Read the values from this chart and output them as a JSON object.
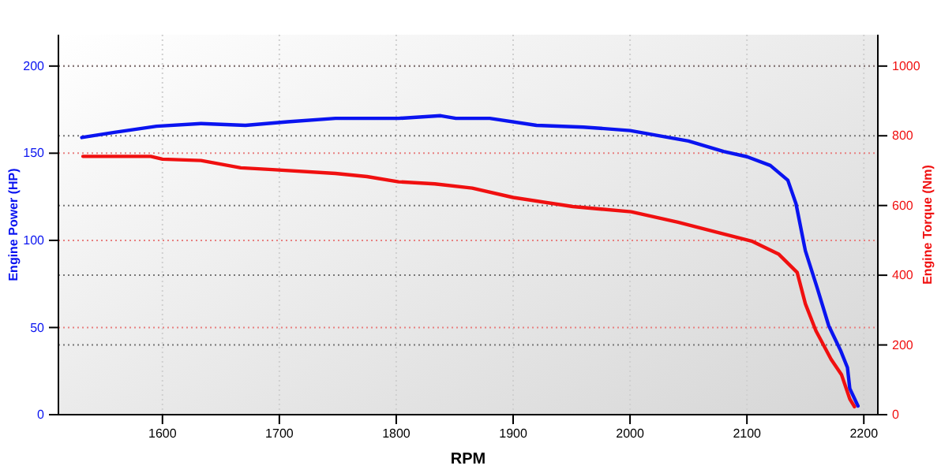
{
  "chart_data": {
    "type": "line",
    "xlabel": "RPM",
    "ylabel": "Engine Power (HP)",
    "y2label": "Engine Torque (Nm)",
    "xlim": [
      1511,
      2212
    ],
    "xticks": [
      1600,
      1700,
      1800,
      1900,
      2000,
      2100,
      2200
    ],
    "ylim": [
      0,
      218
    ],
    "yticks": [
      0,
      50,
      100,
      150,
      200
    ],
    "y2lim": [
      0,
      1090
    ],
    "y2ticks": [
      0,
      200,
      400,
      600,
      800,
      1000
    ],
    "grid": true,
    "line_style": "solid",
    "marker": "none",
    "series": [
      {
        "color": "#0a14f0",
        "x": [
          1531,
          1559,
          1595,
          1633,
          1671,
          1707,
          1748,
          1802,
          1838,
          1851,
          1880,
          1920,
          1960,
          2000,
          2050,
          2080,
          2100,
          2120,
          2135,
          2142,
          2150,
          2160,
          2170,
          2180,
          2186,
          2188,
          2195
        ],
        "values": [
          159,
          162,
          165.5,
          167,
          166,
          168,
          170,
          170,
          171.5,
          170,
          170,
          166,
          165,
          163,
          157,
          151,
          148,
          143,
          134.5,
          121,
          94,
          73,
          51,
          37,
          27,
          15,
          5
        ]
      },
      {
        "color": "#f01010",
        "axis": "y2",
        "x": [
          1532,
          1590,
          1600,
          1633,
          1667,
          1694,
          1748,
          1775,
          1802,
          1833,
          1865,
          1900,
          1951,
          2001,
          2041,
          2077,
          2104,
          2127,
          2143,
          2150,
          2159,
          2172,
          2181,
          2188,
          2192
        ],
        "values": [
          741,
          741,
          733,
          729,
          708,
          703,
          692,
          683,
          668,
          662,
          650,
          623,
          597,
          582,
          552,
          521,
          498,
          461,
          408,
          318,
          241,
          159,
          114,
          45,
          23
        ]
      }
    ]
  }
}
